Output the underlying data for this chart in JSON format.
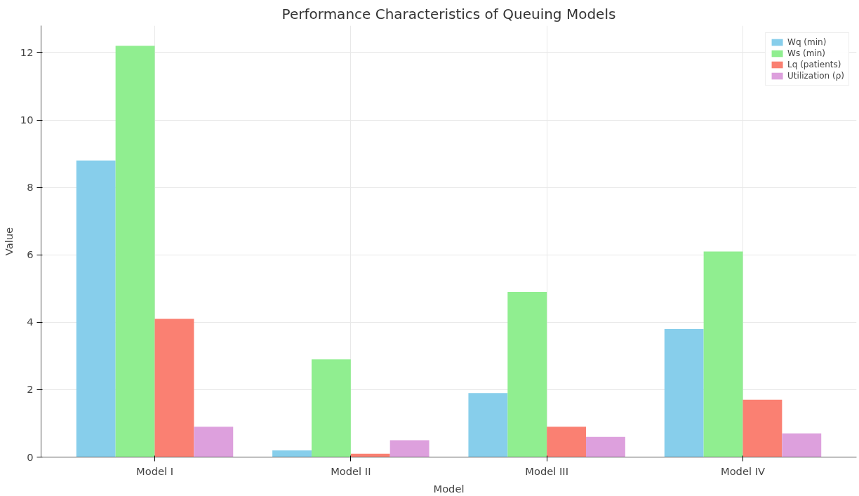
{
  "chart_data": {
    "type": "bar",
    "title": "Performance Characteristics of Queuing Models",
    "xlabel": "Model",
    "ylabel": "Value",
    "categories": [
      "Model I",
      "Model II",
      "Model III",
      "Model IV"
    ],
    "series": [
      {
        "name": "Wq (min)",
        "color": "#87ceeb",
        "values": [
          8.8,
          0.2,
          1.9,
          3.8
        ]
      },
      {
        "name": "Ws (min)",
        "color": "#90ee90",
        "values": [
          12.2,
          2.9,
          4.9,
          6.1
        ]
      },
      {
        "name": "Lq (patients)",
        "color": "#fa8072",
        "values": [
          4.1,
          0.1,
          0.9,
          1.7
        ]
      },
      {
        "name": "Utilization (ρ)",
        "color": "#dda0dd",
        "values": [
          0.9,
          0.5,
          0.6,
          0.7
        ]
      }
    ],
    "ylim": [
      0,
      12.8
    ],
    "yticks": [
      0,
      2,
      4,
      6,
      8,
      10,
      12
    ],
    "grid": true,
    "legend": "top right"
  }
}
